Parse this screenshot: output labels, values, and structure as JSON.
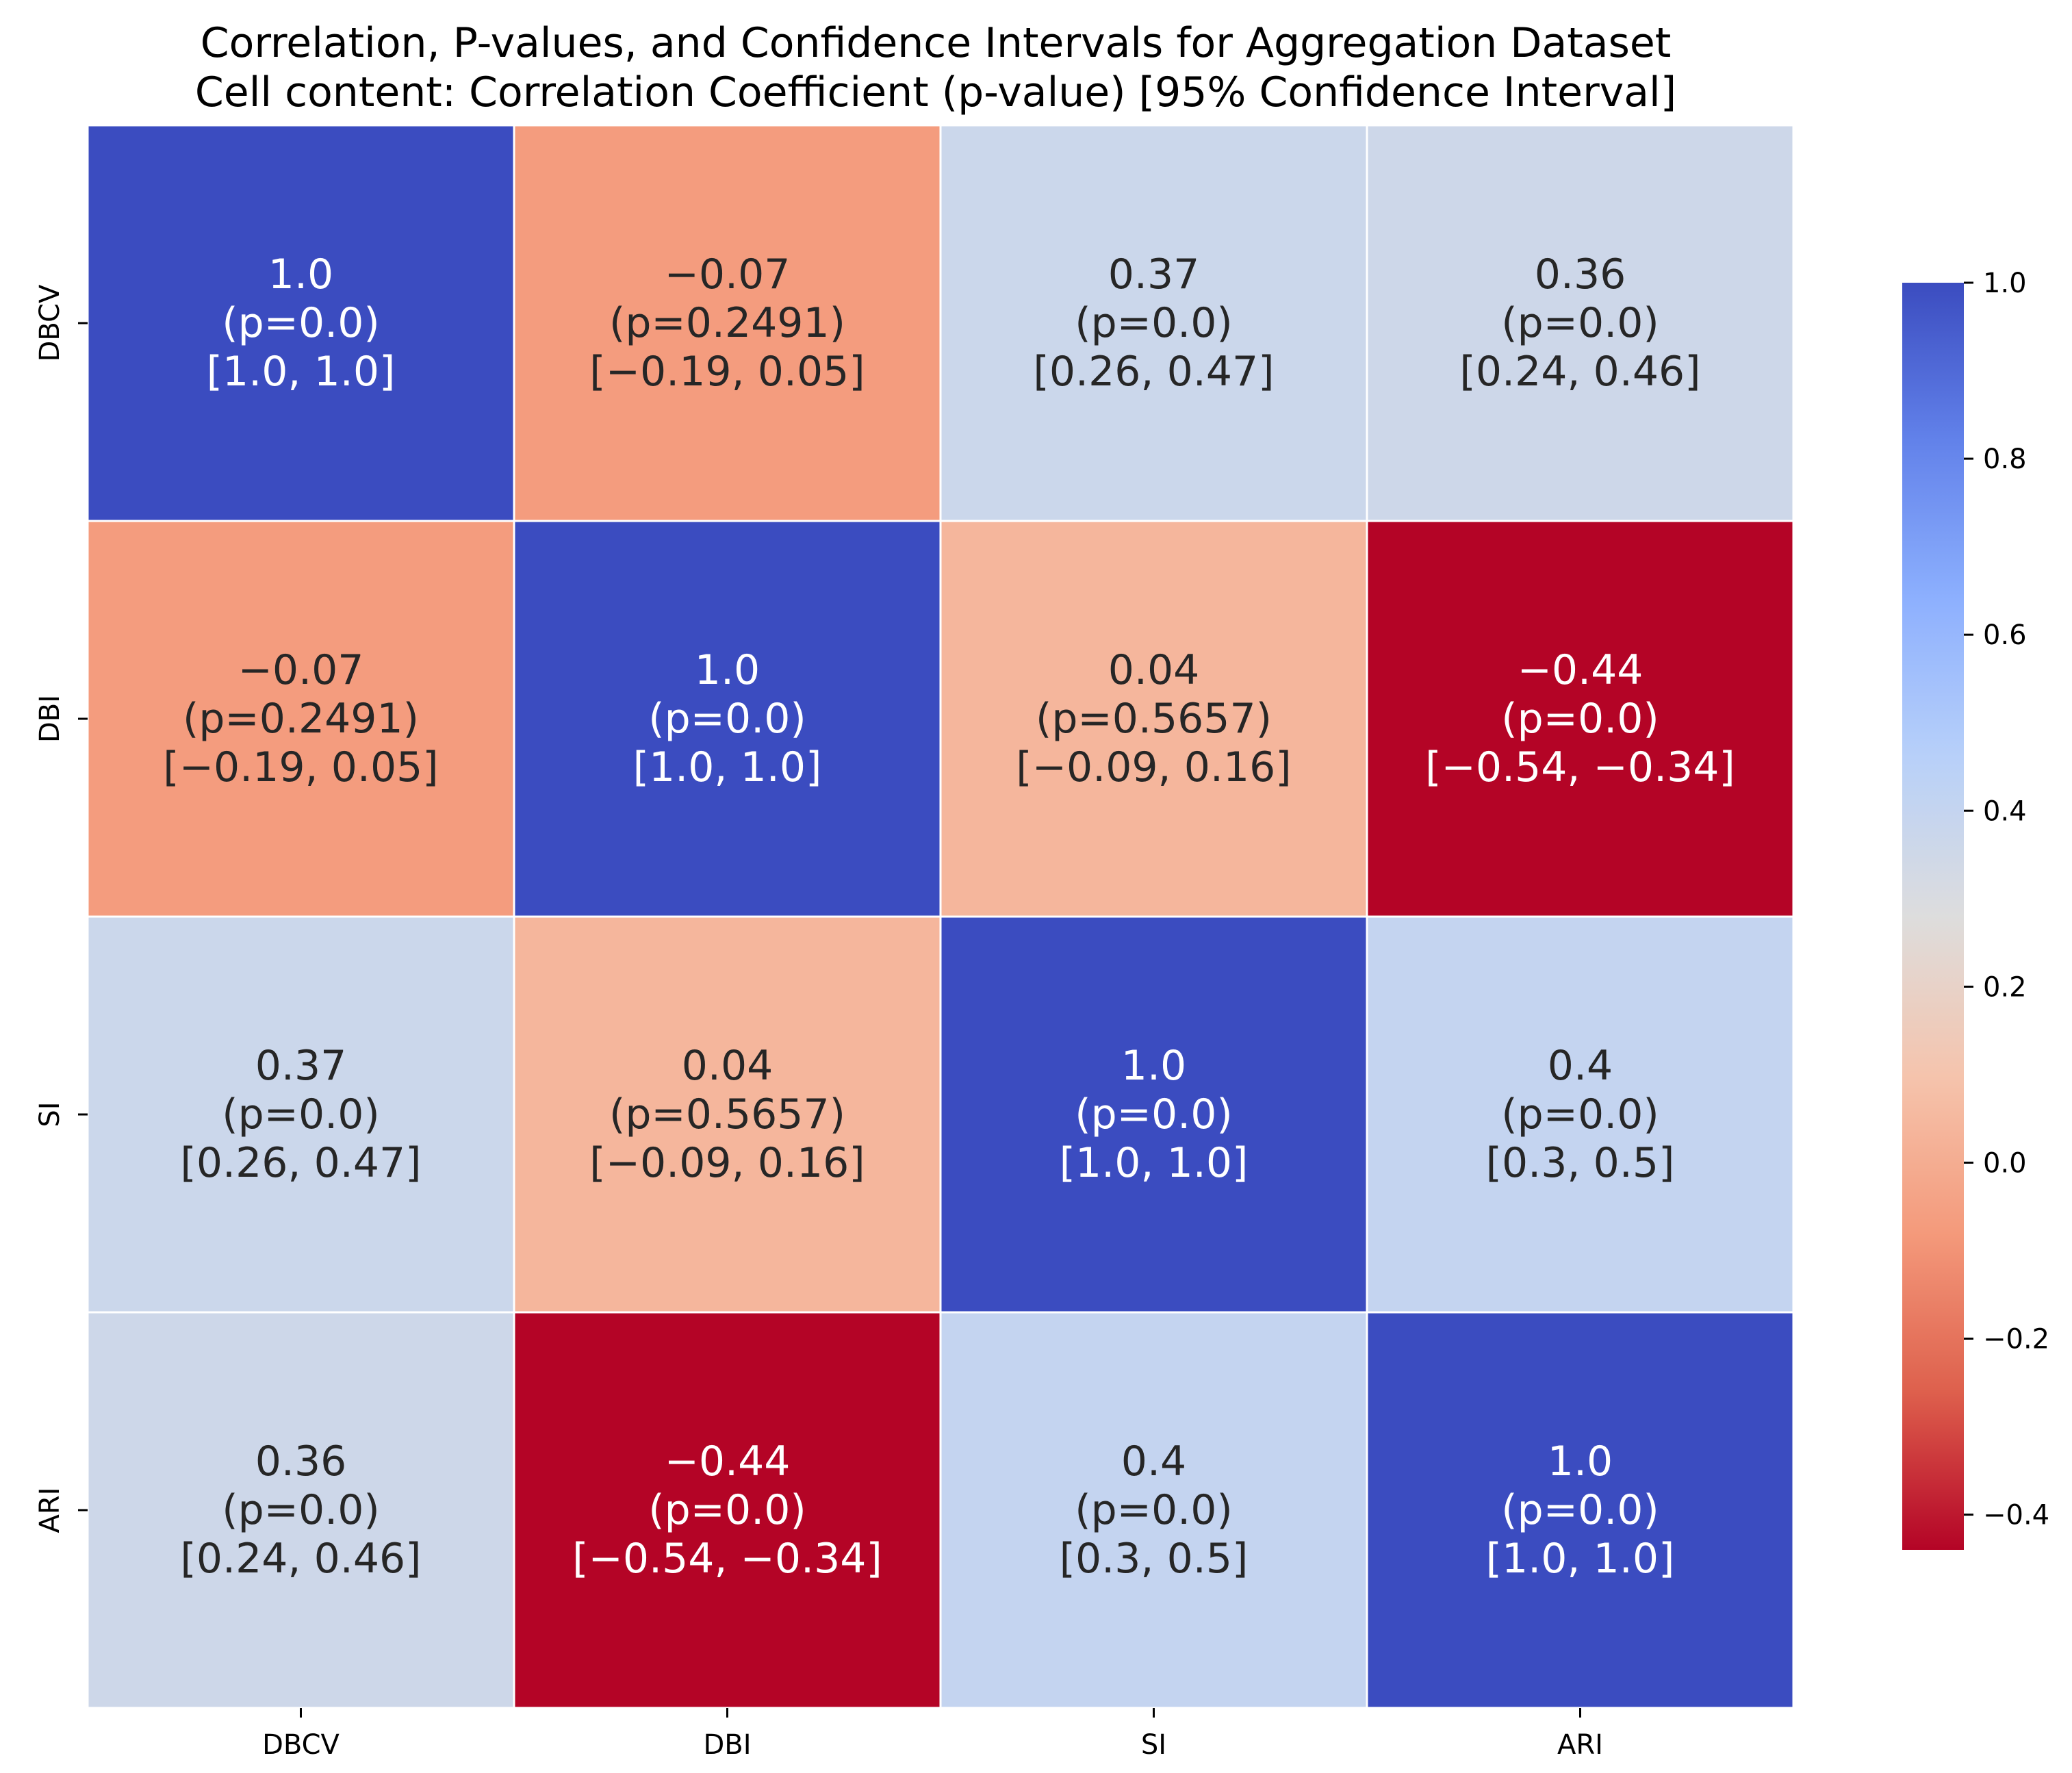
{
  "chart_data": {
    "type": "heatmap",
    "title": "Correlation, P-values, and Confidence Intervals for Aggregation Dataset",
    "subtitle": "Cell content: Correlation Coefficient (p-value) [95% Confidence Interval]",
    "row_labels": [
      "DBCV",
      "DBI",
      "SI",
      "ARI"
    ],
    "col_labels": [
      "DBCV",
      "DBI",
      "SI",
      "ARI"
    ],
    "values": [
      [
        1.0,
        -0.07,
        0.37,
        0.36
      ],
      [
        -0.07,
        1.0,
        0.04,
        -0.44
      ],
      [
        0.37,
        0.04,
        1.0,
        0.4
      ],
      [
        0.36,
        -0.44,
        0.4,
        1.0
      ]
    ],
    "cell_text": [
      [
        [
          "1.0",
          "(p=0.0)",
          "[1.0, 1.0]"
        ],
        [
          "−0.07",
          "(p=0.2491)",
          "[−0.19, 0.05]"
        ],
        [
          "0.37",
          "(p=0.0)",
          "[0.26, 0.47]"
        ],
        [
          "0.36",
          "(p=0.0)",
          "[0.24, 0.46]"
        ]
      ],
      [
        [
          "−0.07",
          "(p=0.2491)",
          "[−0.19, 0.05]"
        ],
        [
          "1.0",
          "(p=0.0)",
          "[1.0, 1.0]"
        ],
        [
          "0.04",
          "(p=0.5657)",
          "[−0.09, 0.16]"
        ],
        [
          "−0.44",
          "(p=0.0)",
          "[−0.54, −0.34]"
        ]
      ],
      [
        [
          "0.37",
          "(p=0.0)",
          "[0.26, 0.47]"
        ],
        [
          "0.04",
          "(p=0.5657)",
          "[−0.09, 0.16]"
        ],
        [
          "1.0",
          "(p=0.0)",
          "[1.0, 1.0]"
        ],
        [
          "0.4",
          "(p=0.0)",
          "[0.3, 0.5]"
        ]
      ],
      [
        [
          "0.36",
          "(p=0.0)",
          "[0.24, 0.46]"
        ],
        [
          "−0.44",
          "(p=0.0)",
          "[−0.54, −0.34]"
        ],
        [
          "0.4",
          "(p=0.0)",
          "[0.3, 0.5]"
        ],
        [
          "1.0",
          "(p=0.0)",
          "[1.0, 1.0]"
        ]
      ]
    ],
    "colormap": "coolwarm_r",
    "vmin": -0.44,
    "vmax": 1.0,
    "colorbar": {
      "ticks": [
        1.0,
        0.8,
        0.6,
        0.4,
        0.2,
        0.0,
        -0.2,
        -0.4
      ],
      "tick_labels": [
        "1.0",
        "0.8",
        "0.6",
        "0.4",
        "0.2",
        "0.0",
        "−0.2",
        "−0.4"
      ]
    },
    "text_colors": {
      "dark": "#262626",
      "light": "#ffffff"
    },
    "grid_line_color": "#ffffff"
  }
}
